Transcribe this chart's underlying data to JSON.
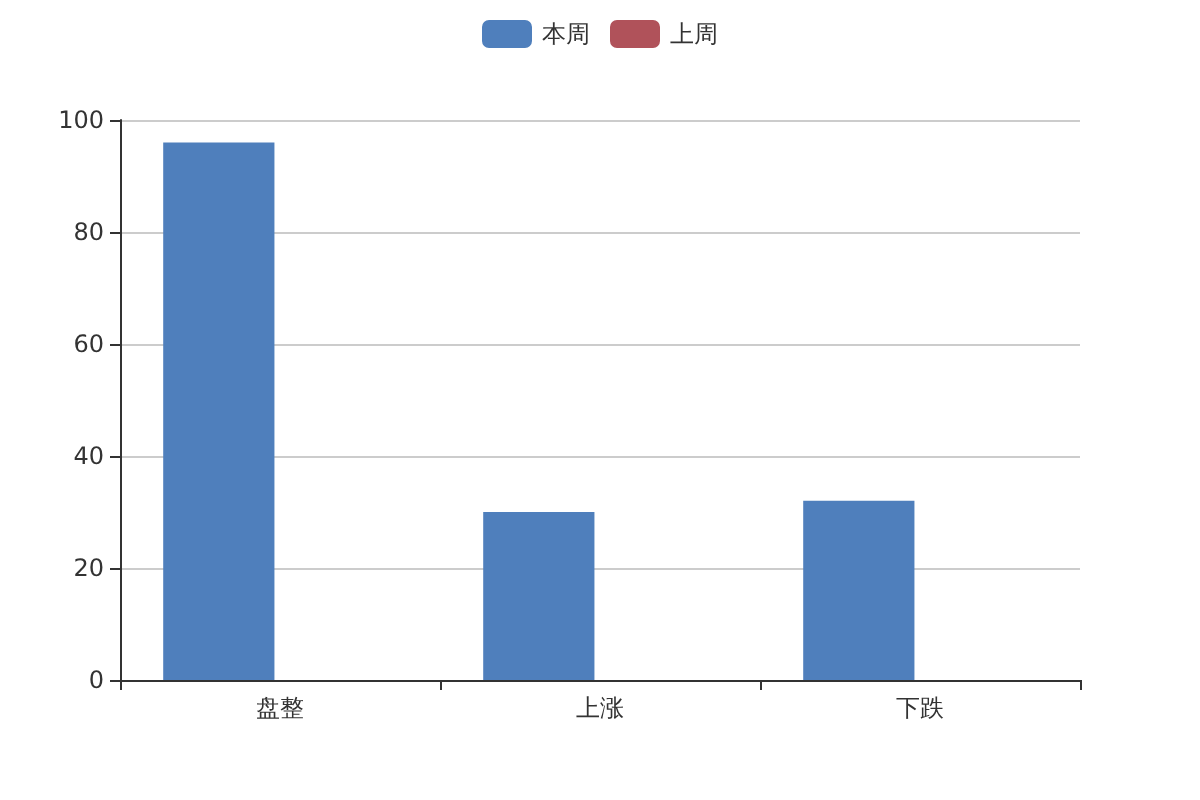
{
  "chart_data": {
    "type": "bar",
    "categories": [
      "盘整",
      "上涨",
      "下跌"
    ],
    "series": [
      {
        "name": "本周",
        "color": "#4f7fbc",
        "values": [
          96,
          30,
          32
        ]
      },
      {
        "name": "上周",
        "color": "#b0525a",
        "values": [
          0,
          0,
          0
        ]
      }
    ],
    "ylim": [
      0,
      100
    ],
    "yticks": [
      0,
      20,
      40,
      60,
      80,
      100
    ],
    "grid": "y",
    "legend": "top"
  }
}
